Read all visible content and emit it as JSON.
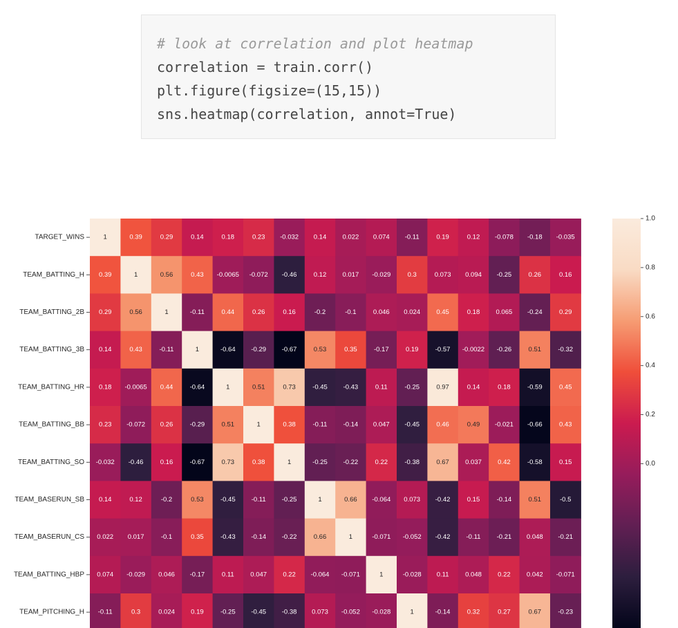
{
  "code_cell": {
    "lines": [
      "# look at correlation and plot heatmap",
      "correlation = train.corr()",
      "plt.figure(figsize=(15,15))",
      "sns.heatmap(correlation, annot=True)"
    ]
  },
  "chart_data": {
    "type": "heatmap",
    "title": "",
    "row_labels": [
      "TARGET_WINS",
      "TEAM_BATTING_H",
      "TEAM_BATTING_2B",
      "TEAM_BATTING_3B",
      "TEAM_BATTING_HR",
      "TEAM_BATTING_BB",
      "TEAM_BATTING_SO",
      "TEAM_BASERUN_SB",
      "TEAM_BASERUN_CS",
      "TEAM_BATTING_HBP",
      "TEAM_PITCHING_H"
    ],
    "values": [
      [
        1,
        0.39,
        0.29,
        0.14,
        0.18,
        0.23,
        -0.032,
        0.14,
        0.022,
        0.074,
        -0.11,
        0.19,
        0.12,
        -0.078,
        -0.18,
        -0.035
      ],
      [
        0.39,
        1,
        0.56,
        0.43,
        -0.0065,
        -0.072,
        -0.46,
        0.12,
        0.017,
        -0.029,
        0.3,
        0.073,
        0.094,
        -0.25,
        0.26,
        0.16
      ],
      [
        0.29,
        0.56,
        1,
        -0.11,
        0.44,
        0.26,
        0.16,
        -0.2,
        -0.1,
        0.046,
        0.024,
        0.45,
        0.18,
        0.065,
        -0.24,
        0.29
      ],
      [
        0.14,
        0.43,
        -0.11,
        1,
        -0.64,
        -0.29,
        -0.67,
        0.53,
        0.35,
        -0.17,
        0.19,
        -0.57,
        -0.0022,
        -0.26,
        0.51,
        -0.32
      ],
      [
        0.18,
        -0.0065,
        0.44,
        -0.64,
        1,
        0.51,
        0.73,
        -0.45,
        -0.43,
        0.11,
        -0.25,
        0.97,
        0.14,
        0.18,
        -0.59,
        0.45
      ],
      [
        0.23,
        -0.072,
        0.26,
        -0.29,
        0.51,
        1,
        0.38,
        -0.11,
        -0.14,
        0.047,
        -0.45,
        0.46,
        0.49,
        -0.021,
        -0.66,
        0.43
      ],
      [
        -0.032,
        -0.46,
        0.16,
        -0.67,
        0.73,
        0.38,
        1,
        -0.25,
        -0.22,
        0.22,
        -0.38,
        0.67,
        0.037,
        0.42,
        -0.58,
        0.15
      ],
      [
        0.14,
        0.12,
        -0.2,
        0.53,
        -0.45,
        -0.11,
        -0.25,
        1,
        0.66,
        -0.064,
        0.073,
        -0.42,
        0.15,
        -0.14,
        0.51,
        -0.5
      ],
      [
        0.022,
        0.017,
        -0.1,
        0.35,
        -0.43,
        -0.14,
        -0.22,
        0.66,
        1,
        -0.071,
        -0.052,
        -0.42,
        -0.11,
        -0.21,
        0.048,
        -0.21
      ],
      [
        0.074,
        -0.029,
        0.046,
        -0.17,
        0.11,
        0.047,
        0.22,
        -0.064,
        -0.071,
        1,
        -0.028,
        0.11,
        0.048,
        0.22,
        0.042,
        -0.071
      ],
      [
        -0.11,
        0.3,
        0.024,
        0.19,
        -0.25,
        -0.45,
        -0.38,
        0.073,
        -0.052,
        -0.028,
        1,
        -0.14,
        0.32,
        0.27,
        0.67,
        -0.23
      ]
    ],
    "value_labels": [
      [
        "1",
        "0.39",
        "0.29",
        "0.14",
        "0.18",
        "0.23",
        "-0.032",
        "0.14",
        "0.022",
        "0.074",
        "-0.11",
        "0.19",
        "0.12",
        "-0.078",
        "-0.18",
        "-0.035"
      ],
      [
        "0.39",
        "1",
        "0.56",
        "0.43",
        "-0.0065",
        "-0.072",
        "-0.46",
        "0.12",
        "0.017",
        "-0.029",
        "0.3",
        "0.073",
        "0.094",
        "-0.25",
        "0.26",
        "0.16"
      ],
      [
        "0.29",
        "0.56",
        "1",
        "-0.11",
        "0.44",
        "0.26",
        "0.16",
        "-0.2",
        "-0.1",
        "0.046",
        "0.024",
        "0.45",
        "0.18",
        "0.065",
        "-0.24",
        "0.29"
      ],
      [
        "0.14",
        "0.43",
        "-0.11",
        "1",
        "-0.64",
        "-0.29",
        "-0.67",
        "0.53",
        "0.35",
        "-0.17",
        "0.19",
        "-0.57",
        "-0.0022",
        "-0.26",
        "0.51",
        "-0.32"
      ],
      [
        "0.18",
        "-0.0065",
        "0.44",
        "-0.64",
        "1",
        "0.51",
        "0.73",
        "-0.45",
        "-0.43",
        "0.11",
        "-0.25",
        "0.97",
        "0.14",
        "0.18",
        "-0.59",
        "0.45"
      ],
      [
        "0.23",
        "-0.072",
        "0.26",
        "-0.29",
        "0.51",
        "1",
        "0.38",
        "-0.11",
        "-0.14",
        "0.047",
        "-0.45",
        "0.46",
        "0.49",
        "-0.021",
        "-0.66",
        "0.43"
      ],
      [
        "-0.032",
        "-0.46",
        "0.16",
        "-0.67",
        "0.73",
        "0.38",
        "1",
        "-0.25",
        "-0.22",
        "0.22",
        "-0.38",
        "0.67",
        "0.037",
        "0.42",
        "-0.58",
        "0.15"
      ],
      [
        "0.14",
        "0.12",
        "-0.2",
        "0.53",
        "-0.45",
        "-0.11",
        "-0.25",
        "1",
        "0.66",
        "-0.064",
        "0.073",
        "-0.42",
        "0.15",
        "-0.14",
        "0.51",
        "-0.5"
      ],
      [
        "0.022",
        "0.017",
        "-0.1",
        "0.35",
        "-0.43",
        "-0.14",
        "-0.22",
        "0.66",
        "1",
        "-0.071",
        "-0.052",
        "-0.42",
        "-0.11",
        "-0.21",
        "0.048",
        "-0.21"
      ],
      [
        "0.074",
        "-0.029",
        "0.046",
        "-0.17",
        "0.11",
        "0.047",
        "0.22",
        "-0.064",
        "-0.071",
        "1",
        "-0.028",
        "0.11",
        "0.048",
        "0.22",
        "0.042",
        "-0.071"
      ],
      [
        "-0.11",
        "0.3",
        "0.024",
        "0.19",
        "-0.25",
        "-0.45",
        "-0.38",
        "0.073",
        "-0.052",
        "-0.028",
        "1",
        "-0.14",
        "0.32",
        "0.27",
        "0.67",
        "-0.23"
      ]
    ],
    "colorbar": {
      "vmin": -0.67,
      "vmax": 1.0,
      "ticks": [
        0.0,
        0.2,
        0.4,
        0.6,
        0.8,
        1.0
      ],
      "tick_labels": [
        "0.0",
        "0.2",
        "0.4",
        "0.6",
        "0.8",
        "1.0"
      ],
      "colormap": "rocket",
      "colormap_stops": [
        "#03051a",
        "#2d1e3e",
        "#611f53",
        "#961c5b",
        "#cb1b4f",
        "#ef4e3a",
        "#f69c73",
        "#f9dbc4",
        "#faebdd"
      ]
    }
  }
}
